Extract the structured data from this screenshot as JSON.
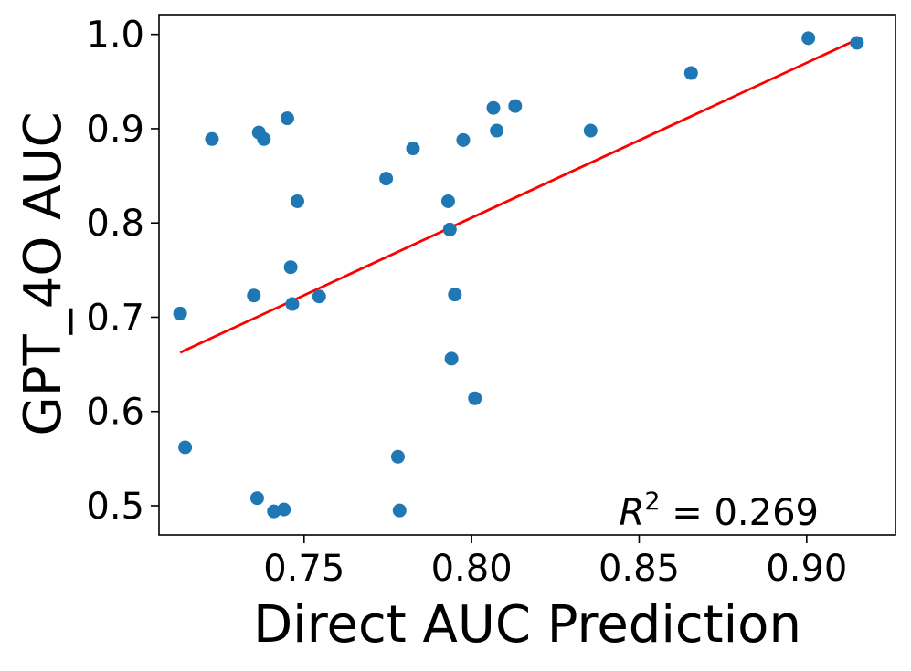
{
  "chart_data": {
    "type": "scatter",
    "title": "",
    "xlabel": "Direct AUC Prediction",
    "ylabel": "GPT_4O AUC",
    "xlim": [
      0.7067,
      0.9265
    ],
    "ylim": [
      0.469,
      1.021
    ],
    "x_ticks": [
      0.75,
      0.8,
      0.85,
      0.9
    ],
    "x_tick_labels": [
      "0.75",
      "0.80",
      "0.85",
      "0.90"
    ],
    "y_ticks": [
      0.5,
      0.6,
      0.7,
      0.8,
      0.9,
      1.0
    ],
    "y_tick_labels": [
      "0.5",
      "0.6",
      "0.7",
      "0.8",
      "0.9",
      "1.0"
    ],
    "grid": false,
    "point_color": "#1f77b4",
    "series": [
      {
        "x": [
          0.713,
          0.7145,
          0.7225,
          0.735,
          0.736,
          0.7365,
          0.738,
          0.741,
          0.744,
          0.745,
          0.746,
          0.7465,
          0.748,
          0.7545,
          0.7745,
          0.778,
          0.7785,
          0.7825,
          0.793,
          0.7935,
          0.794,
          0.795,
          0.7975,
          0.801,
          0.8065,
          0.8075,
          0.813,
          0.8355,
          0.8655,
          0.9005,
          0.915
        ],
        "y": [
          0.704,
          0.562,
          0.889,
          0.723,
          0.508,
          0.896,
          0.889,
          0.494,
          0.496,
          0.911,
          0.753,
          0.714,
          0.823,
          0.722,
          0.847,
          0.552,
          0.495,
          0.879,
          0.823,
          0.793,
          0.656,
          0.724,
          0.888,
          0.614,
          0.922,
          0.898,
          0.924,
          0.898,
          0.959,
          0.996,
          0.991
        ]
      }
    ],
    "fit_line": {
      "color": "#ff0000",
      "x": [
        0.713,
        0.915
      ],
      "y": [
        0.6625,
        0.9945
      ]
    },
    "annotation": {
      "r2_prefix": "R",
      "r2_superscript": "2",
      "r2_suffix": " = 0.269",
      "position": "bottom-right"
    }
  }
}
